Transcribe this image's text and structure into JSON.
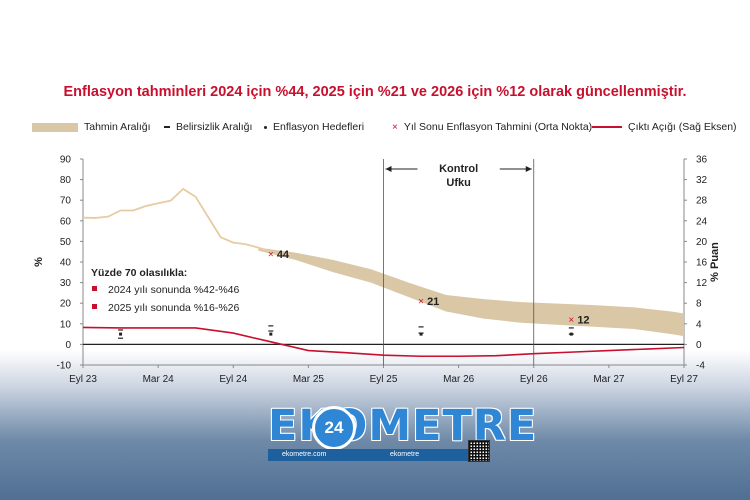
{
  "title": "Enflasyon tahminleri 2024 için %44, 2025 için %21 ve 2026 için %12 olarak güncellenmiştir.",
  "legend": {
    "band": "Tahmin Aralığı",
    "uncertainty": "Belirsizlik Aralığı",
    "targets": "Enflasyon Hedefleri",
    "yearend": "Yıl Sonu Enflasyon Tahmini (Orta Nokta)",
    "output_gap": "Çıktı Açığı (Sağ Eksen)"
  },
  "colors": {
    "title": "#c8102e",
    "band": "#d9c7a5",
    "history_line": "#e8cba3",
    "output_gap": "#c8102e",
    "axis": "#888888",
    "logo": "#2f86d4"
  },
  "chart_data": {
    "type": "line",
    "title": "",
    "ylabel": "%",
    "y2label": "% Puan",
    "ylim": [
      -10,
      90
    ],
    "y2lim": [
      -4,
      36
    ],
    "yticks": [
      -10,
      0,
      10,
      20,
      30,
      40,
      50,
      60,
      70,
      80,
      90
    ],
    "y2ticks": [
      -4,
      0,
      4,
      8,
      12,
      16,
      20,
      24,
      28,
      32,
      36
    ],
    "xticks": [
      "Eyl 23",
      "Mar 24",
      "Eyl 24",
      "Mar 25",
      "Eyl 25",
      "Mar 26",
      "Eyl 26",
      "Mar 27",
      "Eyl 27"
    ],
    "history": {
      "x": [
        0,
        1,
        2,
        3,
        4,
        5,
        6,
        7,
        8,
        9,
        10,
        11,
        12,
        13,
        14,
        15
      ],
      "values": [
        61.5,
        61.4,
        62,
        65,
        65,
        67.1,
        68.5,
        69.8,
        75.5,
        71.6,
        61.8,
        52,
        49.4,
        48.6,
        47,
        45
      ]
    },
    "band": {
      "x": [
        14,
        17,
        20,
        23,
        26,
        29,
        32,
        35,
        38,
        41,
        44,
        47,
        48
      ],
      "upper": [
        47,
        44.5,
        41,
        36.5,
        30,
        24,
        22,
        20.5,
        19.8,
        19,
        18,
        16,
        15
      ],
      "lower": [
        45.5,
        41,
        35,
        30,
        23,
        16,
        12.5,
        10.5,
        9.5,
        8.5,
        7.5,
        5,
        4
      ]
    },
    "year_end_midpoints": [
      {
        "x": 15,
        "value": 44,
        "label": "44"
      },
      {
        "x": 27,
        "value": 21,
        "label": "21"
      },
      {
        "x": 39,
        "value": 12,
        "label": "12"
      }
    ],
    "inflation_targets": [
      {
        "x": 3,
        "value": 5
      },
      {
        "x": 15,
        "value": 5
      },
      {
        "x": 27,
        "value": 5
      },
      {
        "x": 39,
        "value": 5
      }
    ],
    "uncertainty_marks": [
      {
        "x": 3,
        "lower": 3,
        "upper": 7
      },
      {
        "x": 15,
        "lower": 6.5,
        "upper": 9
      },
      {
        "x": 27,
        "lower": 5.5,
        "upper": 8.5
      },
      {
        "x": 39,
        "lower": 5,
        "upper": 8
      }
    ],
    "output_gap": {
      "name": "Çıktı Açığı (Sağ Eksen)",
      "x": [
        0,
        3,
        6,
        9,
        12,
        15,
        18,
        21,
        24,
        27,
        30,
        33,
        36,
        39,
        42,
        45,
        48
      ],
      "values": [
        3.3,
        3.2,
        3.2,
        3.2,
        2.2,
        0.5,
        -1.2,
        -1.6,
        -2.1,
        -2.3,
        -2.3,
        -2.2,
        -1.8,
        -1.5,
        -1.2,
        -0.9,
        -0.6
      ]
    },
    "control_horizon": {
      "x_start": 24,
      "x_end": 36,
      "label_line1": "Kontrol",
      "label_line2": "Ufku"
    },
    "annotation": {
      "heading": "Yüzde 70 olasılıkla:",
      "items": [
        "2024 yılı sonunda %42-%46",
        "2025 yılı sonunda %16-%26"
      ]
    }
  },
  "logo": {
    "text": "EKOMETRE",
    "badge": "24",
    "url": "ekometre.com",
    "social": "ekometre"
  }
}
